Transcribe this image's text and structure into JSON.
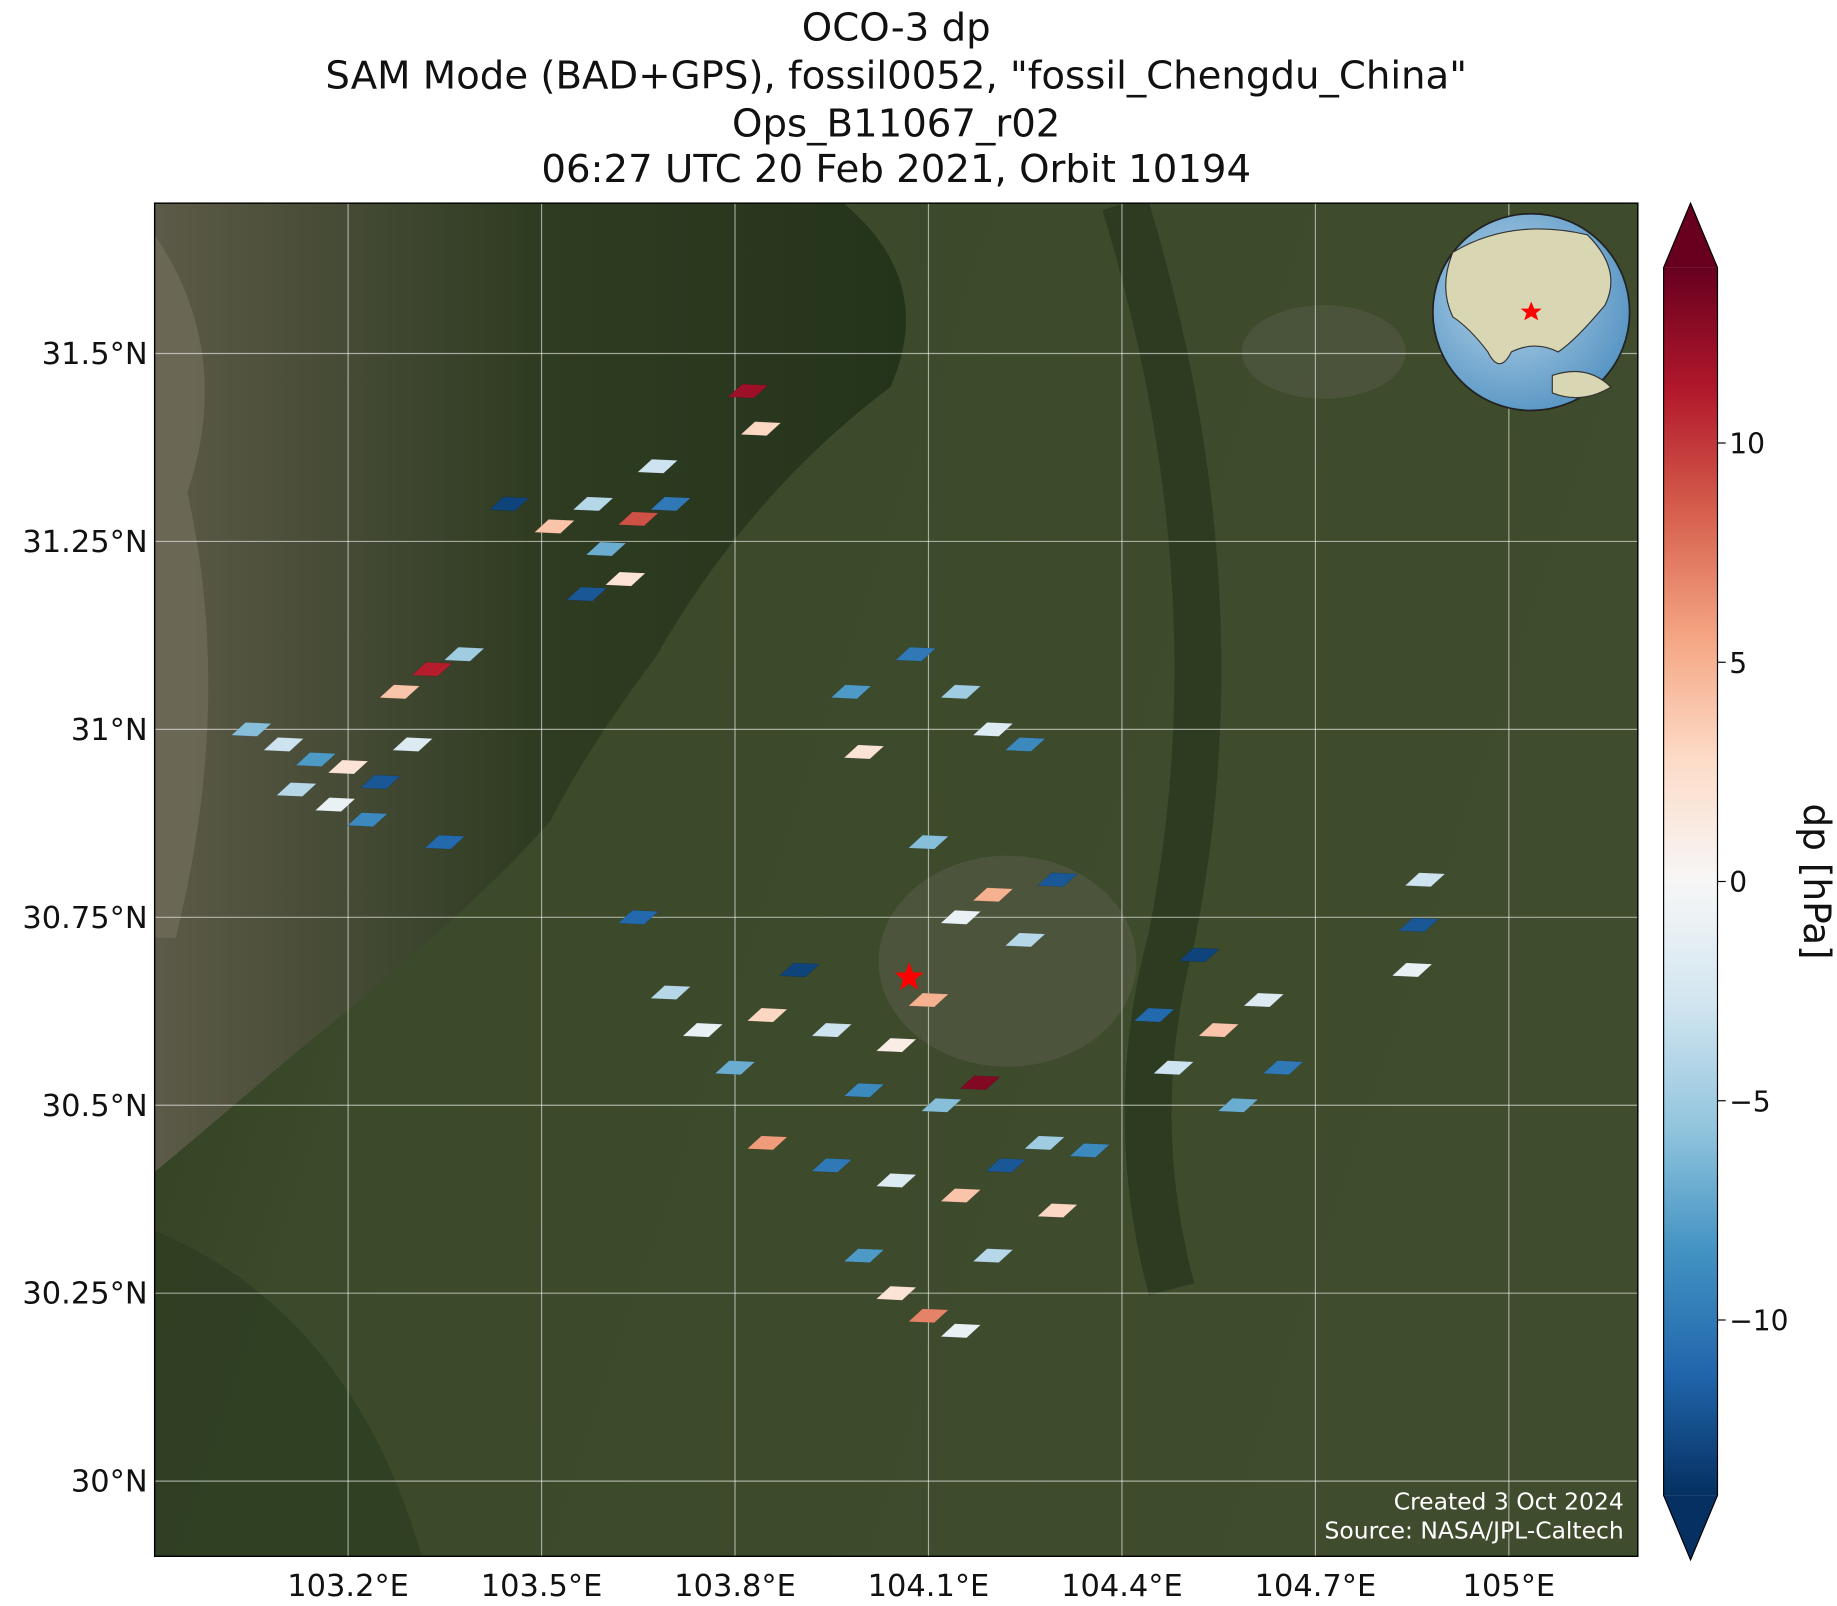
{
  "chart_data": {
    "type": "map",
    "title_lines": [
      "OCO-3 dp",
      "SAM Mode (BAD+GPS), fossil0052, \"fossil_Chengdu_China\"",
      "Ops_B11067_r02",
      "06:27 UTC 20 Feb 2021, Orbit 10194"
    ],
    "xlim": [
      102.9,
      105.2
    ],
    "ylim": [
      29.9,
      31.7
    ],
    "xticks": [
      {
        "value": 103.2,
        "label": "103.2°E"
      },
      {
        "value": 103.5,
        "label": "103.5°E"
      },
      {
        "value": 103.8,
        "label": "103.8°E"
      },
      {
        "value": 104.1,
        "label": "104.1°E"
      },
      {
        "value": 104.4,
        "label": "104.4°E"
      },
      {
        "value": 104.7,
        "label": "104.7°E"
      },
      {
        "value": 105.0,
        "label": "105°E"
      }
    ],
    "yticks": [
      {
        "value": 30.0,
        "label": "30°N"
      },
      {
        "value": 30.25,
        "label": "30.25°N"
      },
      {
        "value": 30.5,
        "label": "30.5°N"
      },
      {
        "value": 30.75,
        "label": "30.75°N"
      },
      {
        "value": 31.0,
        "label": "31°N"
      },
      {
        "value": 31.25,
        "label": "31.25°N"
      },
      {
        "value": 31.5,
        "label": "31.5°N"
      }
    ],
    "grid": true,
    "colorbar": {
      "label": "dp [hPa]",
      "clim": [
        -14,
        14
      ],
      "ticks": [
        {
          "value": -10,
          "label": "−10"
        },
        {
          "value": -5,
          "label": "−5"
        },
        0,
        5,
        10
      ],
      "colormap": [
        "#053061",
        "#2166ac",
        "#4393c3",
        "#92c5de",
        "#d1e5f0",
        "#f7f7f7",
        "#fddbc7",
        "#f4a582",
        "#d6604d",
        "#b2182b",
        "#67001f"
      ]
    },
    "site": {
      "lon": 104.07,
      "lat": 30.67,
      "color": "#ff0000"
    },
    "soundings": {
      "lon": [
        103.05,
        103.1,
        103.15,
        103.2,
        103.25,
        103.12,
        103.18,
        103.23,
        103.28,
        103.33,
        103.38,
        103.3,
        103.35,
        103.45,
        103.52,
        103.58,
        103.6,
        103.65,
        103.7,
        103.63,
        103.68,
        103.57,
        103.82,
        103.84,
        103.98,
        104.0,
        104.08,
        104.15,
        104.2,
        104.25,
        104.1,
        104.2,
        104.25,
        104.3,
        104.15,
        103.65,
        103.7,
        103.75,
        103.8,
        103.85,
        103.9,
        103.95,
        104.0,
        104.05,
        104.1,
        104.12,
        104.18,
        103.85,
        103.95,
        104.05,
        104.15,
        104.22,
        104.28,
        104.3,
        104.0,
        104.05,
        104.1,
        104.15,
        104.2,
        104.35,
        104.45,
        104.48,
        104.52,
        104.55,
        104.58,
        104.62,
        104.65,
        104.87,
        104.86,
        104.85
      ],
      "lat": [
        31.0,
        30.98,
        30.96,
        30.95,
        30.93,
        30.92,
        30.9,
        30.88,
        31.05,
        31.08,
        31.1,
        30.98,
        30.85,
        31.3,
        31.27,
        31.3,
        31.24,
        31.28,
        31.3,
        31.2,
        31.35,
        31.18,
        31.45,
        31.4,
        31.05,
        30.97,
        31.1,
        31.05,
        31.0,
        30.98,
        30.85,
        30.78,
        30.72,
        30.8,
        30.75,
        30.75,
        30.65,
        30.6,
        30.55,
        30.62,
        30.68,
        30.6,
        30.52,
        30.58,
        30.64,
        30.5,
        30.53,
        30.45,
        30.42,
        30.4,
        30.38,
        30.42,
        30.45,
        30.36,
        30.3,
        30.25,
        30.22,
        30.2,
        30.3,
        30.44,
        30.62,
        30.55,
        30.7,
        30.6,
        30.5,
        30.64,
        30.55,
        30.8,
        30.74,
        30.68
      ],
      "dp": [
        -6,
        -3,
        -8,
        2,
        -12,
        -4,
        -1,
        -9,
        4,
        11,
        -5,
        -2,
        -11,
        -13,
        4,
        -4,
        -7,
        9,
        -10,
        2,
        -3,
        -12,
        12,
        3,
        -8,
        2,
        -10,
        -5,
        -2,
        -9,
        -6,
        5,
        -4,
        -12,
        -1,
        -11,
        -4,
        -1,
        -7,
        3,
        -13,
        -3,
        -9,
        1,
        5,
        -6,
        13,
        6,
        -10,
        -2,
        4,
        -12,
        -5,
        3,
        -8,
        2,
        7,
        -1,
        -4,
        -9,
        -11,
        -3,
        -13,
        4,
        -7,
        -2,
        -10,
        -3,
        -12,
        -1
      ]
    },
    "annotations": [
      "Created 3 Oct 2024",
      "Source: NASA/JPL-Caltech"
    ]
  }
}
